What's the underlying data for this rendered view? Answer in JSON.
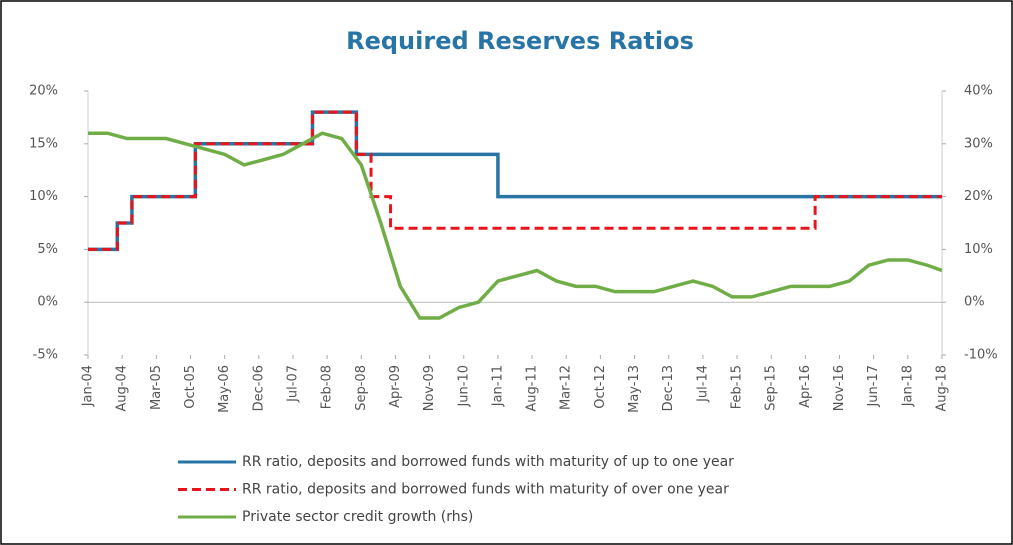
{
  "chart_data": {
    "type": "line",
    "title": "Required Reserves Ratios",
    "xlim": [
      "2004-01",
      "2018-08"
    ],
    "xticks": [
      {
        "value": "2004-01",
        "label": "Jan-04"
      },
      {
        "value": "2004-08",
        "label": "Aug-04"
      },
      {
        "value": "2005-03",
        "label": "Mar-05"
      },
      {
        "value": "2005-10",
        "label": "Oct-05"
      },
      {
        "value": "2006-05",
        "label": "May-06"
      },
      {
        "value": "2006-12",
        "label": "Dec-06"
      },
      {
        "value": "2007-07",
        "label": "Jul-07"
      },
      {
        "value": "2008-02",
        "label": "Feb-08"
      },
      {
        "value": "2008-09",
        "label": "Sep-08"
      },
      {
        "value": "2009-04",
        "label": "Apr-09"
      },
      {
        "value": "2009-11",
        "label": "Nov-09"
      },
      {
        "value": "2010-06",
        "label": "Jun-10"
      },
      {
        "value": "2011-01",
        "label": "Jan-11"
      },
      {
        "value": "2011-08",
        "label": "Aug-11"
      },
      {
        "value": "2012-03",
        "label": "Mar-12"
      },
      {
        "value": "2012-10",
        "label": "Oct-12"
      },
      {
        "value": "2013-05",
        "label": "May-13"
      },
      {
        "value": "2013-12",
        "label": "Dec-13"
      },
      {
        "value": "2014-07",
        "label": "Jul-14"
      },
      {
        "value": "2015-02",
        "label": "Feb-15"
      },
      {
        "value": "2015-09",
        "label": "Sep-15"
      },
      {
        "value": "2016-04",
        "label": "Apr-16"
      },
      {
        "value": "2016-11",
        "label": "Nov-16"
      },
      {
        "value": "2017-06",
        "label": "Jun-17"
      },
      {
        "value": "2018-01",
        "label": "Jan-18"
      },
      {
        "value": "2018-08",
        "label": "Aug-18"
      }
    ],
    "ylim": [
      -5,
      20
    ],
    "yticks": [
      {
        "value": -5,
        "label": "-5%"
      },
      {
        "value": 0,
        "label": "0%"
      },
      {
        "value": 5,
        "label": "5%"
      },
      {
        "value": 10,
        "label": "10%"
      },
      {
        "value": 15,
        "label": "15%"
      },
      {
        "value": 20,
        "label": "20%"
      }
    ],
    "y2lim": [
      -10,
      40
    ],
    "y2ticks": [
      {
        "value": -10,
        "label": "-10%"
      },
      {
        "value": 0,
        "label": "0%"
      },
      {
        "value": 10,
        "label": "10%"
      },
      {
        "value": 20,
        "label": "20%"
      },
      {
        "value": 30,
        "label": "30%"
      },
      {
        "value": 40,
        "label": "40%"
      }
    ],
    "legend": "bottom",
    "series": [
      {
        "name": "RR ratio, deposits and borrowed funds with maturity of up to one year",
        "color": "#2874a6",
        "style": "solid",
        "step": true,
        "x": [
          "2004-01",
          "2004-07",
          "2004-10",
          "2005-11",
          "2007-11",
          "2008-08",
          "2011-01",
          "2018-08"
        ],
        "values": [
          5,
          7.5,
          10,
          15,
          18,
          14,
          10,
          10
        ]
      },
      {
        "name": "RR ratio, deposits and borrowed funds with maturity of over one year",
        "color": "#e8141b",
        "style": "dashed",
        "step": true,
        "x": [
          "2004-01",
          "2004-07",
          "2004-10",
          "2005-11",
          "2007-11",
          "2008-08",
          "2008-11",
          "2009-03",
          "2016-06",
          "2018-08"
        ],
        "values": [
          5,
          7.5,
          10,
          15,
          18,
          14,
          10,
          7,
          10,
          10
        ]
      },
      {
        "name": "Private sector credit growth (rhs)",
        "color": "#70ad47",
        "style": "solid",
        "axis": "y2",
        "x": [
          "2004-01",
          "2004-05",
          "2004-09",
          "2005-01",
          "2005-05",
          "2005-09",
          "2006-01",
          "2006-05",
          "2006-09",
          "2007-01",
          "2007-05",
          "2007-09",
          "2008-01",
          "2008-05",
          "2008-09",
          "2009-01",
          "2009-05",
          "2009-09",
          "2010-01",
          "2010-05",
          "2010-09",
          "2011-01",
          "2011-05",
          "2011-09",
          "2012-01",
          "2012-05",
          "2012-09",
          "2013-01",
          "2013-05",
          "2013-09",
          "2014-01",
          "2014-05",
          "2014-09",
          "2015-01",
          "2015-05",
          "2015-09",
          "2016-01",
          "2016-05",
          "2016-09",
          "2017-01",
          "2017-05",
          "2017-09",
          "2018-01",
          "2018-05",
          "2018-08"
        ],
        "values": [
          32,
          32,
          31,
          31,
          31,
          30,
          29,
          28,
          26,
          27,
          28,
          30,
          32,
          31,
          26,
          15,
          3,
          -3,
          -3,
          -1,
          0,
          4,
          5,
          6,
          4,
          3,
          3,
          2,
          2,
          2,
          3,
          4,
          3,
          1,
          1,
          2,
          3,
          3,
          3,
          4,
          7,
          8,
          8,
          7,
          6
        ]
      }
    ]
  }
}
